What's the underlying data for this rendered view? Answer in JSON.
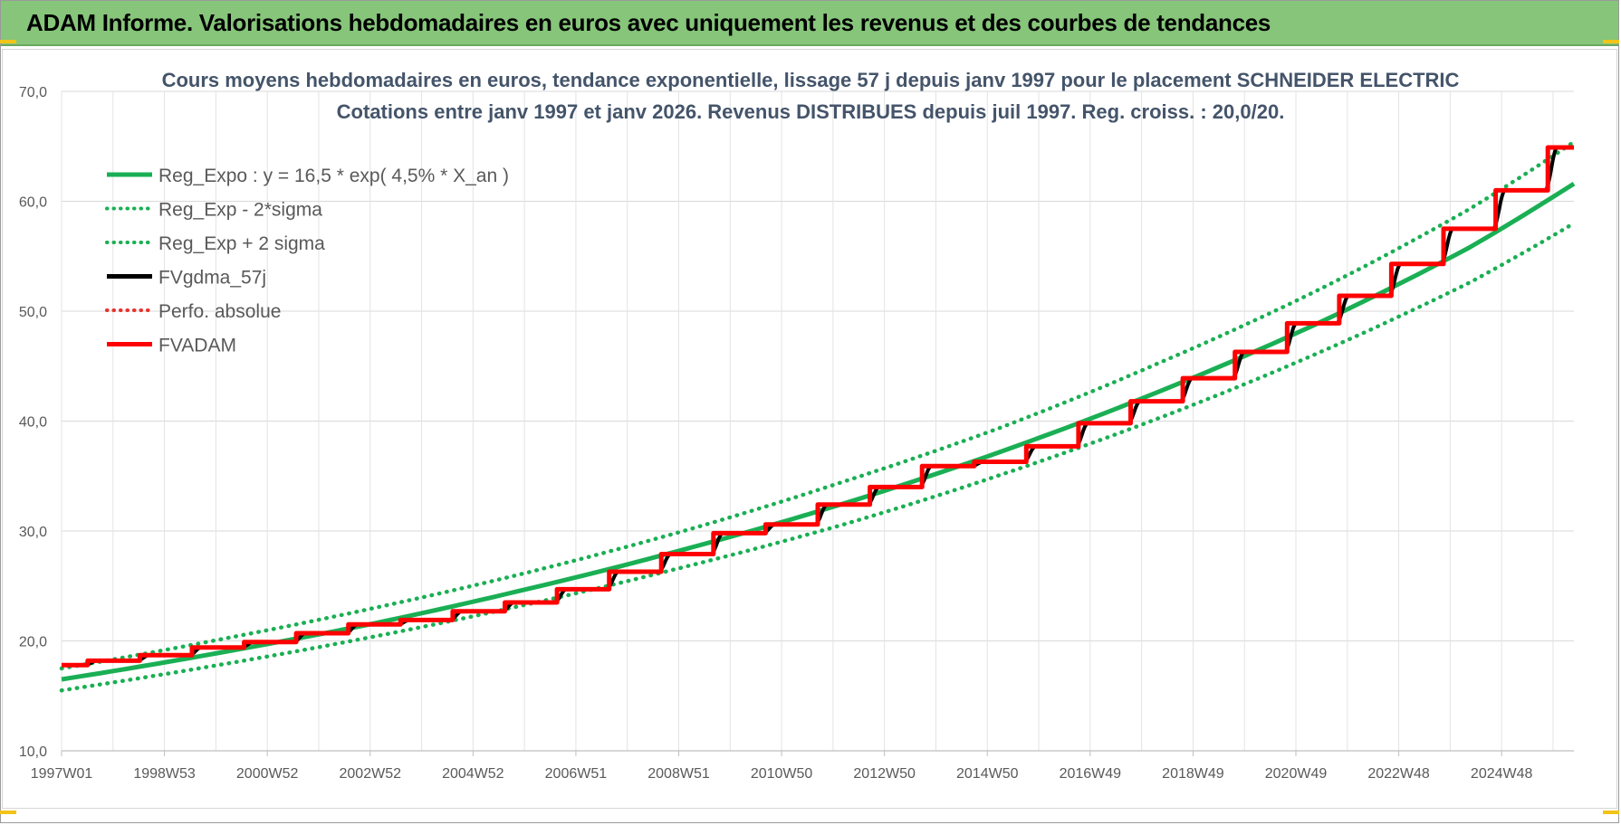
{
  "banner": {
    "title": "ADAM Informe. Valorisations hebdomadaires en euros avec uniquement les revenus et des courbes de tendances"
  },
  "colors": {
    "banner_bg": "#86c57a",
    "reg_green": "#1aaf54",
    "fvgdma_black": "#000000",
    "fvadam_red": "#ff0000",
    "perfo_red": "#e8322b",
    "grid": "#d9d9d9",
    "accent_yellow": "#f2c318"
  },
  "chart_data": {
    "type": "line",
    "title": "Cours moyens hebdomadaires en euros, tendance exponentielle, lissage 57 j depuis janv 1997 pour le placement SCHNEIDER ELECTRIC",
    "subtitle": "Cotations entre janv 1997 et janv 2026. Revenus DISTRIBUES depuis juil 1997. Reg. croiss. : 20,0/20.",
    "xlabel": "",
    "ylabel": "",
    "ylim": [
      10,
      70
    ],
    "yticks": [
      "10,0",
      "20,0",
      "30,0",
      "40,0",
      "50,0",
      "60,0",
      "70,0"
    ],
    "x_tick_labels": [
      "1997W01",
      "1998W53",
      "2000W52",
      "2002W52",
      "2004W52",
      "2006W51",
      "2008W51",
      "2010W50",
      "2012W50",
      "2014W50",
      "2016W49",
      "2018W49",
      "2020W49",
      "2022W48",
      "2024W48"
    ],
    "x_range_years": [
      1997.0,
      2026.0
    ],
    "legend_position": "top-left",
    "grid": true,
    "series": [
      {
        "name": "Reg_Expo : y = 16,5 * exp( 4,5% *  X_an )",
        "style": "solid",
        "color": "#1aaf54",
        "x": [
          1997,
          2000,
          2003,
          2006,
          2009,
          2012,
          2015,
          2018,
          2021,
          2024,
          2026
        ],
        "values": [
          16.5,
          18.9,
          21.6,
          24.8,
          28.4,
          32.5,
          37.2,
          42.6,
          48.7,
          55.8,
          61.6
        ]
      },
      {
        "name": "Reg_Exp - 2*sigma",
        "style": "dotted",
        "color": "#1aaf54",
        "x": [
          1997,
          2000,
          2003,
          2006,
          2009,
          2012,
          2015,
          2018,
          2021,
          2024,
          2026
        ],
        "values": [
          15.5,
          17.8,
          20.4,
          23.4,
          26.8,
          30.6,
          35.1,
          40.2,
          46.0,
          52.6,
          58.0
        ]
      },
      {
        "name": "Reg_Exp + 2 sigma",
        "style": "dotted",
        "color": "#1aaf54",
        "x": [
          1997,
          2000,
          2003,
          2006,
          2009,
          2012,
          2015,
          2018,
          2021,
          2024,
          2026
        ],
        "values": [
          17.5,
          20.1,
          23.0,
          26.3,
          30.1,
          34.5,
          39.4,
          45.2,
          51.7,
          59.3,
          65.4
        ]
      },
      {
        "name": "FVgdma_57j",
        "style": "solid",
        "color": "#000000",
        "x": [
          1997.0,
          1997.5,
          1998.5,
          1999.5,
          2000.5,
          2001.5,
          2002.5,
          2003.5,
          2004.5,
          2005.5,
          2006.5,
          2007.5,
          2008.5,
          2009.5,
          2010.5,
          2011.5,
          2012.5,
          2013.5,
          2014.5,
          2015.5,
          2016.5,
          2017.5,
          2018.5,
          2019.5,
          2020.5,
          2021.5,
          2022.5,
          2023.5,
          2024.5,
          2025.5,
          2026.0
        ],
        "values": [
          17.8,
          18.2,
          18.7,
          19.4,
          19.9,
          20.7,
          21.5,
          21.9,
          22.7,
          23.5,
          24.7,
          26.3,
          27.9,
          29.8,
          30.6,
          32.4,
          34.0,
          35.9,
          36.3,
          37.7,
          39.8,
          41.8,
          43.9,
          46.3,
          48.9,
          51.4,
          54.3,
          57.5,
          61.0,
          64.9,
          64.9
        ]
      },
      {
        "name": "Perfo. absolue",
        "style": "dotted",
        "color": "#e8322b",
        "x": [],
        "values": []
      },
      {
        "name": "FVADAM",
        "style": "step",
        "color": "#ff0000",
        "x": [
          1997.0,
          1997.5,
          1998.5,
          1999.5,
          2000.5,
          2001.5,
          2002.5,
          2003.5,
          2004.5,
          2005.5,
          2006.5,
          2007.5,
          2008.5,
          2009.5,
          2010.5,
          2011.5,
          2012.5,
          2013.5,
          2014.5,
          2015.5,
          2016.5,
          2017.5,
          2018.5,
          2019.5,
          2020.5,
          2021.5,
          2022.5,
          2023.5,
          2024.5,
          2025.5,
          2026.0
        ],
        "values": [
          17.8,
          18.2,
          18.7,
          19.4,
          19.9,
          20.7,
          21.5,
          21.9,
          22.7,
          23.5,
          24.7,
          26.3,
          27.9,
          29.8,
          30.6,
          32.4,
          34.0,
          35.9,
          36.3,
          37.7,
          39.8,
          41.8,
          43.9,
          46.3,
          48.9,
          51.4,
          54.3,
          57.5,
          61.0,
          64.9,
          64.9
        ]
      }
    ]
  }
}
